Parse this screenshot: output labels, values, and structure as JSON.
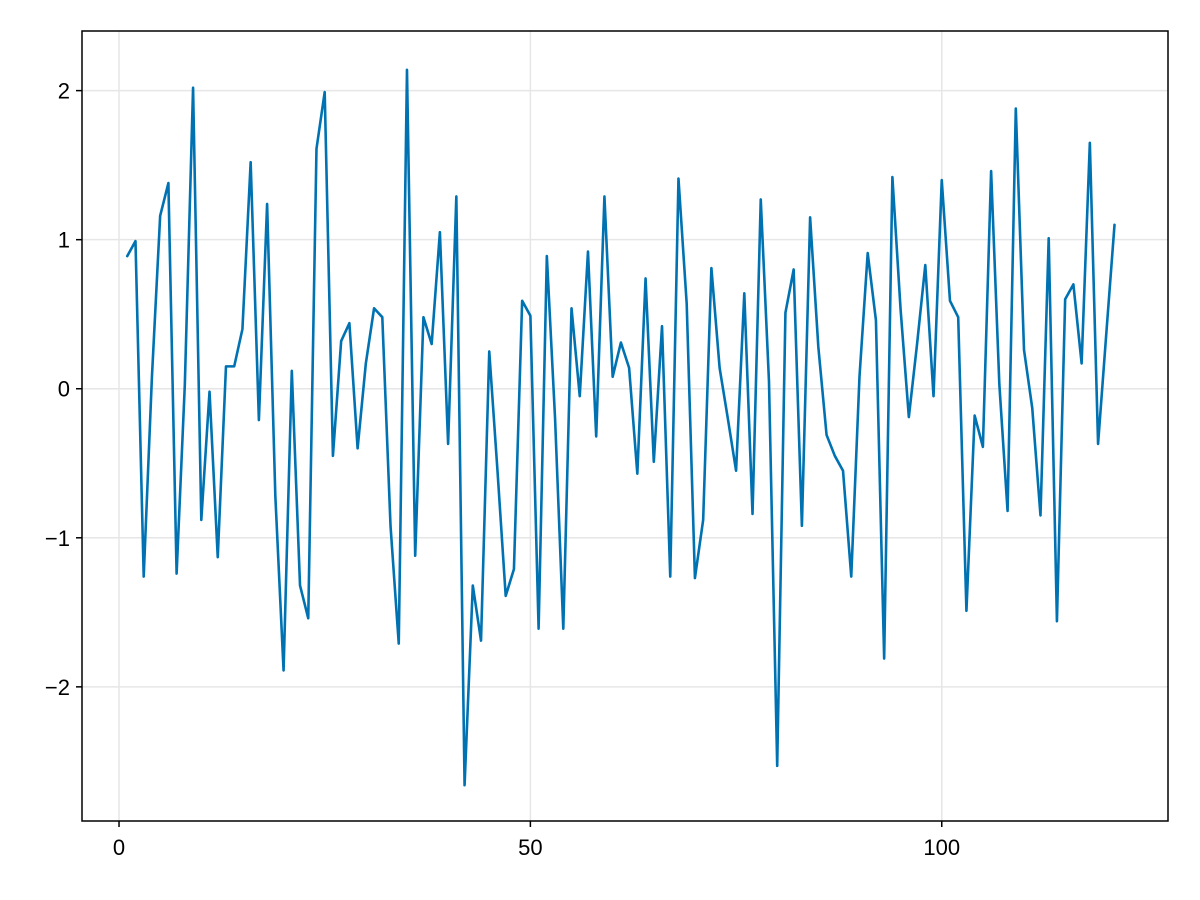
{
  "chart_data": {
    "type": "line",
    "title": "",
    "xlabel": "",
    "ylabel": "",
    "xlim": [
      -4.5,
      127.5
    ],
    "ylim": [
      -2.9,
      2.4
    ],
    "x_ticks": [
      0,
      50,
      100
    ],
    "x_tick_labels": [
      "0",
      "50",
      "100"
    ],
    "y_ticks": [
      -2,
      -1,
      0,
      1,
      2
    ],
    "y_tick_labels": [
      "−2",
      "−1",
      "0",
      "1",
      "2"
    ],
    "grid": true,
    "legend": "none",
    "series": [
      {
        "color": "#0072b2",
        "x": [
          1,
          2,
          3,
          4,
          5,
          6,
          7,
          8,
          9,
          10,
          11,
          12,
          13,
          14,
          15,
          16,
          17,
          18,
          19,
          20,
          21,
          22,
          23,
          24,
          25,
          26,
          27,
          28,
          29,
          30,
          31,
          32,
          33,
          34,
          35,
          36,
          37,
          38,
          39,
          40,
          41,
          42,
          43,
          44,
          45,
          46,
          47,
          48,
          49,
          50,
          51,
          52,
          53,
          54,
          55,
          56,
          57,
          58,
          59,
          60,
          61,
          62,
          63,
          64,
          65,
          66,
          67,
          68,
          69,
          70,
          71,
          72,
          73,
          74,
          75,
          76,
          77,
          78,
          79,
          80,
          81,
          82,
          83,
          84,
          85,
          86,
          87,
          88,
          89,
          90,
          91,
          92,
          93,
          94,
          95,
          96,
          97,
          98,
          99,
          100,
          101,
          102,
          103,
          104,
          105,
          106,
          107,
          108,
          109,
          110,
          111,
          112,
          113,
          114,
          115,
          116,
          117,
          118,
          119,
          120,
          121
        ],
        "values": [
          0.89,
          0.99,
          -1.26,
          0.08,
          1.16,
          1.38,
          -1.24,
          0.03,
          2.02,
          -0.88,
          -0.02,
          -1.13,
          0.15,
          0.15,
          0.4,
          1.52,
          -0.21,
          1.24,
          -0.72,
          -1.89,
          0.12,
          -1.32,
          -1.54,
          1.61,
          1.99,
          -0.45,
          0.32,
          0.44,
          -0.4,
          0.17,
          0.54,
          0.48,
          -0.92,
          -1.71,
          2.14,
          -1.12,
          0.48,
          0.3,
          1.05,
          -0.37,
          1.29,
          -2.66,
          -1.32,
          -1.69,
          0.25,
          -0.55,
          -1.39,
          -1.21,
          0.59,
          0.49,
          -1.61,
          0.89,
          -0.2,
          -1.61,
          0.54,
          -0.05,
          0.92,
          -0.32,
          1.29,
          0.08,
          0.31,
          0.14,
          -0.57,
          0.74,
          -0.49,
          0.42,
          -1.26,
          1.41,
          0.57,
          -1.27,
          -0.88,
          0.81,
          0.14,
          -0.2,
          -0.55,
          0.64,
          -0.84,
          1.27,
          0.05,
          -2.53,
          0.51,
          0.8,
          -0.92,
          1.15,
          0.28,
          -0.31,
          -0.45,
          -0.55,
          -1.26,
          0.08,
          0.91,
          0.46,
          -1.81,
          1.42,
          0.53,
          -0.19,
          0.3,
          0.83,
          -0.05,
          1.4,
          0.59,
          0.48,
          -1.49,
          -0.18,
          -0.39,
          1.46,
          0.03,
          -0.82,
          1.88,
          0.26,
          -0.13,
          -0.85,
          1.01,
          -1.56,
          0.6,
          0.7,
          0.17,
          1.65,
          -0.37,
          0.37,
          1.1
        ]
      }
    ]
  }
}
